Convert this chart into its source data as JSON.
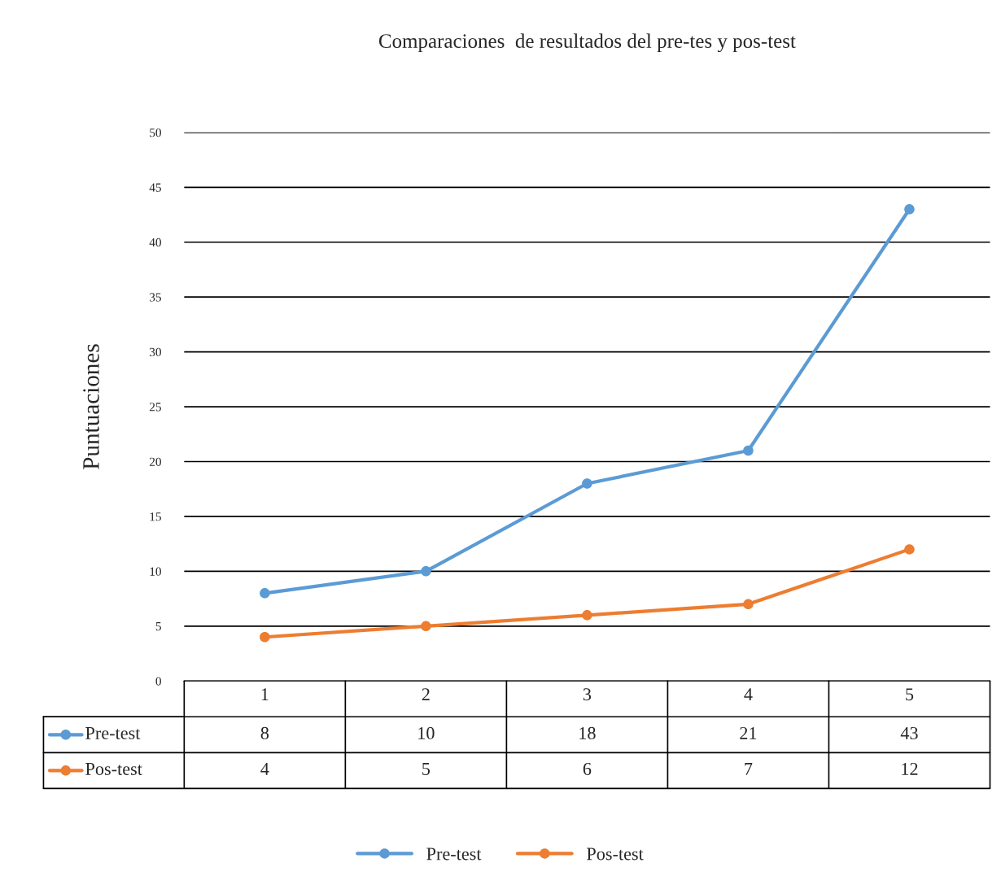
{
  "chart_data": {
    "type": "line",
    "title": "Comparaciones  de resultados del pre-tes y pos-test",
    "ylabel": "Puntuaciones",
    "categories": [
      "1",
      "2",
      "3",
      "4",
      "5"
    ],
    "series": [
      {
        "name": "Pre-test",
        "color": "#5b9bd5",
        "values": [
          8,
          10,
          18,
          21,
          43
        ]
      },
      {
        "name": "Pos-test",
        "color": "#ed7d31",
        "values": [
          4,
          5,
          6,
          7,
          12
        ]
      }
    ],
    "ylim": [
      0,
      50
    ],
    "yticks": [
      0,
      5,
      10,
      15,
      20,
      25,
      30,
      35,
      40,
      45,
      50
    ],
    "grid": "y",
    "marker": "circle",
    "line_style": "solid",
    "legend": "bottom",
    "data_labels": true
  }
}
